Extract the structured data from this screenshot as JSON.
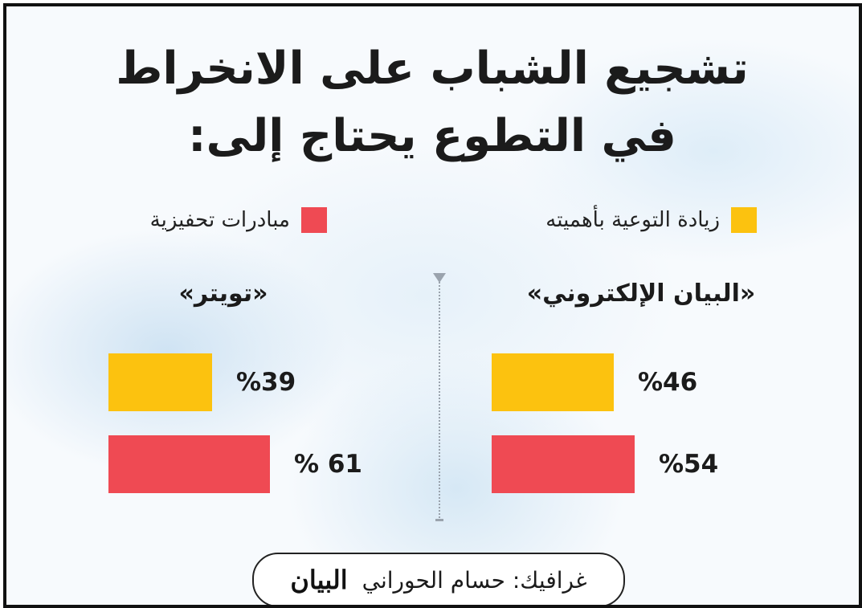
{
  "title_line1": "تشجيع الشباب على الانخراط",
  "title_line2": "في التطوع يحتاج إلى:",
  "legend": [
    {
      "label": "زيادة التوعية بأهميته",
      "color": "#fcc20f"
    },
    {
      "label": "مبادرات تحفيزية",
      "color": "#ef4a53"
    }
  ],
  "chart_data": [
    {
      "type": "bar",
      "title": "«البيان الإلكتروني»",
      "categories": [
        "زيادة التوعية بأهميته",
        "مبادرات تحفيزية"
      ],
      "values": [
        46,
        54
      ],
      "labels": [
        "%46",
        "%54"
      ],
      "colors": [
        "#fcc20f",
        "#ef4a53"
      ],
      "unit": "%"
    },
    {
      "type": "bar",
      "title": "«تويتر»",
      "categories": [
        "زيادة التوعية بأهميته",
        "مبادرات تحفيزية"
      ],
      "values": [
        39,
        61
      ],
      "labels": [
        "%39",
        "% 61"
      ],
      "colors": [
        "#fcc20f",
        "#ef4a53"
      ],
      "unit": "%"
    }
  ],
  "credit": {
    "text": "غرافيك: حسام الحوراني",
    "logo_text": "البيان"
  }
}
